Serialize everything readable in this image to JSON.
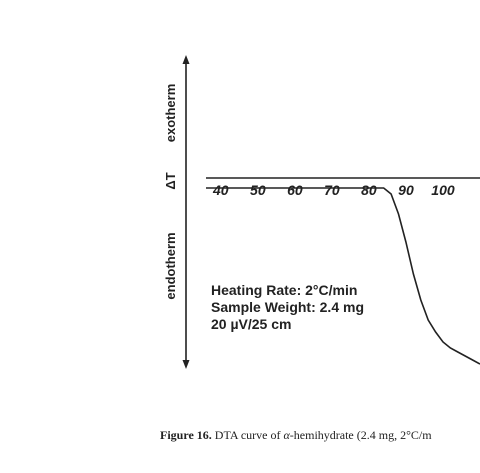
{
  "chart_data": {
    "type": "line",
    "y_axis": {
      "upper_label": "exotherm",
      "center_label": "ΔT",
      "lower_label": "endotherm"
    },
    "x_ticks": [
      "40",
      "50",
      "60",
      "70",
      "80",
      "90",
      "100"
    ],
    "x_tick_values": [
      40,
      50,
      60,
      70,
      80,
      90,
      100
    ],
    "xlim": [
      36,
      110
    ],
    "ylim": [
      -1,
      0.1
    ],
    "series": [
      {
        "x": [
          36,
          80,
          84,
          86,
          88,
          90,
          92,
          94,
          96,
          98,
          100,
          102,
          104,
          106,
          108,
          110
        ],
        "y": [
          0,
          0,
          0,
          -0.03,
          -0.13,
          -0.27,
          -0.43,
          -0.56,
          -0.66,
          -0.72,
          -0.77,
          -0.8,
          -0.82,
          -0.84,
          -0.86,
          -0.88
        ]
      }
    ],
    "annotations": [
      "Heating Rate:  2°C/min",
      "Sample Weight:  2.4 mg",
      "20 µV/25 cm"
    ],
    "grid": false
  },
  "caption": {
    "label": "Figure 16.",
    "text_before": " DTA curve of ",
    "alpha": "α",
    "text_after": "-hemihydrate (2.4 mg, 2°C/m"
  }
}
